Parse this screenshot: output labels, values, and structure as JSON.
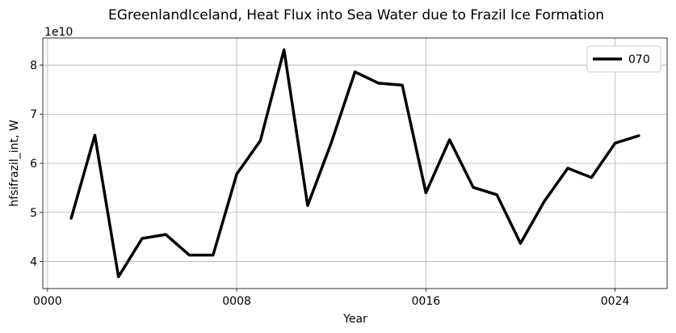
{
  "chart_data": {
    "type": "line",
    "title": "EGreenlandIceland, Heat Flux into Sea Water due to Frazil Ice Formation",
    "xlabel": "Year",
    "ylabel": "hfsifrazil_int, W",
    "y_multiplier_label": "1e10",
    "xlim": [
      -0.2,
      26.2
    ],
    "ylim": [
      3.45,
      8.55
    ],
    "x_ticks": [
      0,
      8,
      16,
      24
    ],
    "x_tick_labels": [
      "0000",
      "0008",
      "0016",
      "0024"
    ],
    "y_ticks": [
      4,
      5,
      6,
      7,
      8
    ],
    "y_tick_labels": [
      "4",
      "5",
      "6",
      "7",
      "8"
    ],
    "grid": true,
    "legend_position": "top-right",
    "series": [
      {
        "name": "070",
        "color": "#000000",
        "x": [
          1,
          2,
          3,
          4,
          5,
          6,
          7,
          8,
          9,
          10,
          11,
          12,
          13,
          14,
          15,
          16,
          17,
          18,
          19,
          20,
          21,
          22,
          23,
          24,
          25
        ],
        "y": [
          4.88,
          6.57,
          3.69,
          4.47,
          4.55,
          4.13,
          4.13,
          5.78,
          6.46,
          8.31,
          5.14,
          6.42,
          7.86,
          7.63,
          7.59,
          5.4,
          6.48,
          5.51,
          5.36,
          4.37,
          5.22,
          5.9,
          5.71,
          6.41,
          6.56
        ]
      }
    ]
  }
}
